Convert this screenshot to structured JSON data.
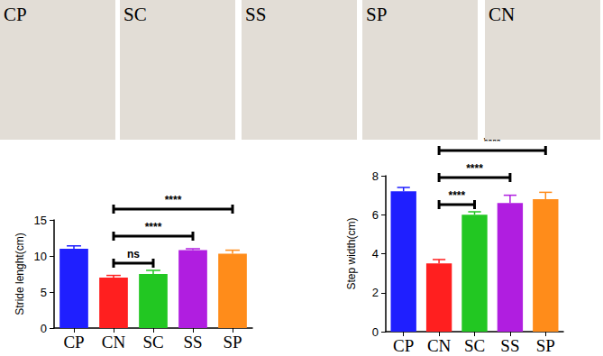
{
  "image_panels": [
    "CP",
    "SC",
    "SS",
    "SP",
    "CN"
  ],
  "chart_data": [
    {
      "type": "bar",
      "y_label": "Stride lenght(cm)",
      "categories": [
        "CP",
        "CN",
        "SC",
        "SS",
        "SP"
      ],
      "values": [
        11.0,
        7.0,
        7.5,
        10.8,
        10.3
      ],
      "errors": [
        0.4,
        0.3,
        0.5,
        0.2,
        0.5
      ],
      "colors": [
        "#1f1fff",
        "#ff1f1f",
        "#22c722",
        "#b01ee0",
        "#ff8c1a"
      ],
      "ylim": [
        0,
        15
      ],
      "yticks": [
        0,
        5,
        10,
        15
      ],
      "grid": false,
      "comparisons": [
        {
          "from": "CN",
          "to": "SC",
          "label": "ns"
        },
        {
          "from": "CN",
          "to": "SS",
          "label": "****"
        },
        {
          "from": "CN",
          "to": "SP",
          "label": "****"
        }
      ]
    },
    {
      "type": "bar",
      "y_label": "Step width(cm)",
      "categories": [
        "CP",
        "CN",
        "SC",
        "SS",
        "SP"
      ],
      "values": [
        7.2,
        3.5,
        6.0,
        6.6,
        6.8
      ],
      "errors": [
        0.2,
        0.2,
        0.15,
        0.4,
        0.35
      ],
      "colors": [
        "#1f1fff",
        "#ff1f1f",
        "#22c722",
        "#b01ee0",
        "#ff8c1a"
      ],
      "ylim": [
        0,
        8
      ],
      "yticks": [
        0,
        2,
        4,
        6,
        8
      ],
      "grid": false,
      "comparisons": [
        {
          "from": "CN",
          "to": "SC",
          "label": "****"
        },
        {
          "from": "CN",
          "to": "SS",
          "label": "****"
        },
        {
          "from": "CN",
          "to": "SP",
          "label": "****"
        }
      ]
    }
  ]
}
